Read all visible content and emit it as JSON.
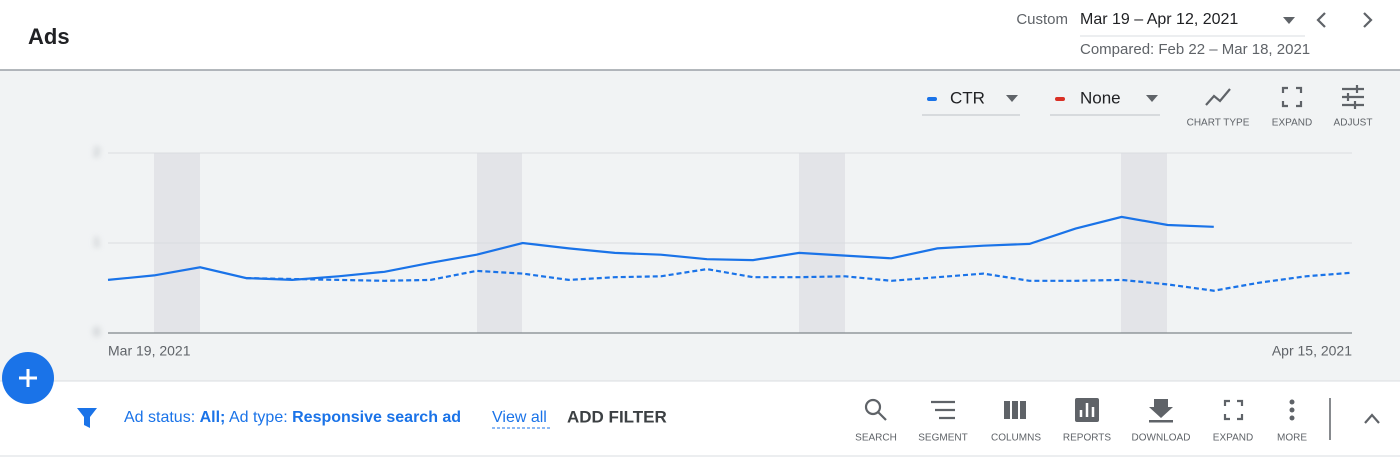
{
  "header": {
    "title": "Ads",
    "range_label": "Custom",
    "range": "Mar 19 – Apr 12, 2021",
    "compared": "Compared: Feb 22 – Mar 18, 2021"
  },
  "toolbar": {
    "metrics": [
      {
        "label": "CTR",
        "color": "#1a73e8"
      },
      {
        "label": "None",
        "color": "#d93025"
      }
    ],
    "buttons": [
      "CHART TYPE",
      "EXPAND",
      "ADJUST"
    ]
  },
  "chart_data": {
    "type": "line",
    "categories": [
      "Mar 19, 2021",
      null,
      null,
      null,
      null,
      null,
      null,
      null,
      null,
      null,
      null,
      null,
      null,
      null,
      null,
      null,
      null,
      null,
      null,
      null,
      null,
      null,
      null,
      null,
      null,
      null,
      null,
      "Apr 15, 2021"
    ],
    "series": [
      {
        "color": "#1a73e8",
        "dashed": false,
        "values": [
          0.59,
          0.64,
          0.73,
          0.61,
          0.59,
          0.63,
          0.68,
          0.78,
          0.87,
          1.0,
          0.94,
          0.89,
          0.87,
          0.82,
          0.81,
          0.89,
          0.86,
          0.83,
          0.94,
          0.97,
          0.99,
          1.16,
          1.29,
          1.2,
          1.18,
          null,
          null,
          null
        ]
      },
      {
        "color": "#1a73e8",
        "dashed": true,
        "values": [
          null,
          null,
          null,
          0.61,
          0.6,
          0.59,
          0.58,
          0.59,
          0.69,
          0.66,
          0.59,
          0.62,
          0.63,
          0.71,
          0.62,
          0.62,
          0.63,
          0.58,
          0.62,
          0.66,
          0.58,
          0.58,
          0.59,
          0.54,
          0.47,
          0.56,
          0.63,
          0.67
        ]
      }
    ],
    "ylim": [
      0,
      2
    ],
    "yticks": [
      0,
      1,
      2
    ],
    "grid": true
  },
  "filters": {
    "status_label": "Ad status:",
    "status_value": "All;",
    "type_label": "Ad type:",
    "type_value": "Responsive search ad",
    "view_all": "View all",
    "add_filter": "ADD FILTER"
  },
  "actions": [
    "SEARCH",
    "SEGMENT",
    "COLUMNS",
    "REPORTS",
    "DOWNLOAD",
    "EXPAND",
    "MORE"
  ]
}
